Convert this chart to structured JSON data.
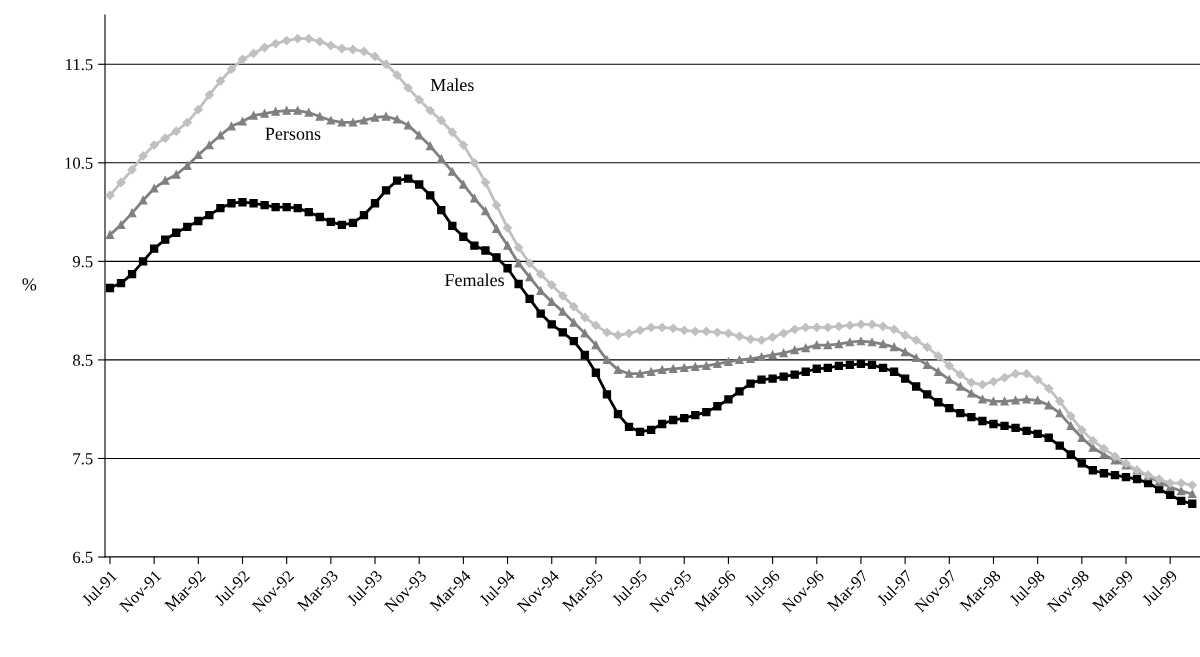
{
  "chart_data": {
    "type": "line",
    "ylabel": "%",
    "categories": [
      "Jul-91",
      null,
      null,
      null,
      "Nov-91",
      null,
      null,
      null,
      "Mar-92",
      null,
      null,
      null,
      "Jul-92",
      null,
      null,
      null,
      "Nov-92",
      null,
      null,
      null,
      "Mar-93",
      null,
      null,
      null,
      "Jul-93",
      null,
      null,
      null,
      "Nov-93",
      null,
      null,
      null,
      "Mar-94",
      null,
      null,
      null,
      "Jul-94",
      null,
      null,
      null,
      "Nov-94",
      null,
      null,
      null,
      "Mar-95",
      null,
      null,
      null,
      "Jul-95",
      null,
      null,
      null,
      "Nov-95",
      null,
      null,
      null,
      "Mar-96",
      null,
      null,
      null,
      "Jul-96",
      null,
      null,
      null,
      "Nov-96",
      null,
      null,
      null,
      "Mar-97",
      null,
      null,
      null,
      "Jul-97",
      null,
      null,
      null,
      "Nov-97",
      null,
      null,
      null,
      "Mar-98",
      null,
      null,
      null,
      "Jul-98",
      null,
      null,
      null,
      "Nov-98",
      null,
      null,
      null,
      "Mar-99",
      null,
      null,
      null,
      "Jul-99",
      null,
      null
    ],
    "series": [
      {
        "name": "Males",
        "color": "#c0c0c0",
        "marker": "diamond",
        "values": [
          10.17,
          10.3,
          10.43,
          10.57,
          10.68,
          10.75,
          10.82,
          10.91,
          11.04,
          11.19,
          11.33,
          11.45,
          11.55,
          11.61,
          11.67,
          11.71,
          11.74,
          11.76,
          11.76,
          11.73,
          11.69,
          11.66,
          11.65,
          11.63,
          11.58,
          11.5,
          11.39,
          11.26,
          11.14,
          11.03,
          10.93,
          10.81,
          10.68,
          10.5,
          10.3,
          10.07,
          9.84,
          9.64,
          9.48,
          9.37,
          9.26,
          9.15,
          9.04,
          8.93,
          8.85,
          8.78,
          8.75,
          8.77,
          8.8,
          8.83,
          8.83,
          8.82,
          8.8,
          8.79,
          8.79,
          8.78,
          8.77,
          8.74,
          8.71,
          8.7,
          8.73,
          8.77,
          8.81,
          8.83,
          8.83,
          8.83,
          8.84,
          8.85,
          8.86,
          8.86,
          8.84,
          8.81,
          8.75,
          8.7,
          8.63,
          8.54,
          8.44,
          8.35,
          8.27,
          8.25,
          8.28,
          8.32,
          8.36,
          8.36,
          8.3,
          8.21,
          8.08,
          7.93,
          7.79,
          7.68,
          7.6,
          7.52,
          7.45,
          7.38,
          7.33,
          7.29,
          7.25,
          7.25,
          7.23
        ]
      },
      {
        "name": "Persons",
        "color": "#808080",
        "marker": "triangle",
        "values": [
          9.77,
          9.87,
          9.99,
          10.12,
          10.24,
          10.32,
          10.38,
          10.47,
          10.58,
          10.68,
          10.78,
          10.87,
          10.92,
          10.98,
          11.0,
          11.02,
          11.03,
          11.03,
          11.01,
          10.97,
          10.93,
          10.91,
          10.91,
          10.93,
          10.96,
          10.97,
          10.94,
          10.88,
          10.78,
          10.67,
          10.54,
          10.41,
          10.28,
          10.14,
          10.01,
          9.83,
          9.66,
          9.48,
          9.34,
          9.2,
          9.09,
          8.99,
          8.88,
          8.77,
          8.65,
          8.5,
          8.4,
          8.36,
          8.36,
          8.38,
          8.4,
          8.41,
          8.42,
          8.43,
          8.44,
          8.46,
          8.48,
          8.5,
          8.51,
          8.53,
          8.55,
          8.57,
          8.6,
          8.62,
          8.65,
          8.65,
          8.66,
          8.68,
          8.69,
          8.68,
          8.66,
          8.63,
          8.58,
          8.52,
          8.45,
          8.38,
          8.3,
          8.23,
          8.16,
          8.1,
          8.08,
          8.08,
          8.09,
          8.1,
          8.09,
          8.04,
          7.96,
          7.83,
          7.71,
          7.61,
          7.54,
          7.48,
          7.43,
          7.38,
          7.32,
          7.26,
          7.21,
          7.17,
          7.14
        ]
      },
      {
        "name": "Females",
        "color": "#000000",
        "marker": "square",
        "values": [
          9.23,
          9.28,
          9.37,
          9.5,
          9.63,
          9.72,
          9.79,
          9.85,
          9.91,
          9.97,
          10.04,
          10.09,
          10.1,
          10.09,
          10.07,
          10.05,
          10.05,
          10.04,
          10.0,
          9.95,
          9.9,
          9.87,
          9.89,
          9.97,
          10.09,
          10.22,
          10.32,
          10.34,
          10.28,
          10.17,
          10.02,
          9.86,
          9.75,
          9.66,
          9.61,
          9.54,
          9.43,
          9.27,
          9.12,
          8.97,
          8.86,
          8.78,
          8.69,
          8.55,
          8.37,
          8.15,
          7.95,
          7.82,
          7.77,
          7.79,
          7.85,
          7.89,
          7.91,
          7.94,
          7.97,
          8.03,
          8.1,
          8.18,
          8.26,
          8.3,
          8.31,
          8.33,
          8.35,
          8.38,
          8.41,
          8.42,
          8.44,
          8.45,
          8.46,
          8.45,
          8.42,
          8.38,
          8.31,
          8.23,
          8.15,
          8.07,
          8.01,
          7.96,
          7.92,
          7.88,
          7.85,
          7.83,
          7.81,
          7.78,
          7.75,
          7.71,
          7.63,
          7.54,
          7.45,
          7.38,
          7.35,
          7.33,
          7.31,
          7.29,
          7.25,
          7.19,
          7.13,
          7.07,
          7.04
        ]
      }
    ],
    "ylim": [
      6.5,
      12.0
    ],
    "yticks": [
      6.5,
      7.5,
      8.5,
      9.5,
      10.5,
      11.5
    ],
    "grid": "y",
    "legend": false,
    "line_style": "solid"
  }
}
